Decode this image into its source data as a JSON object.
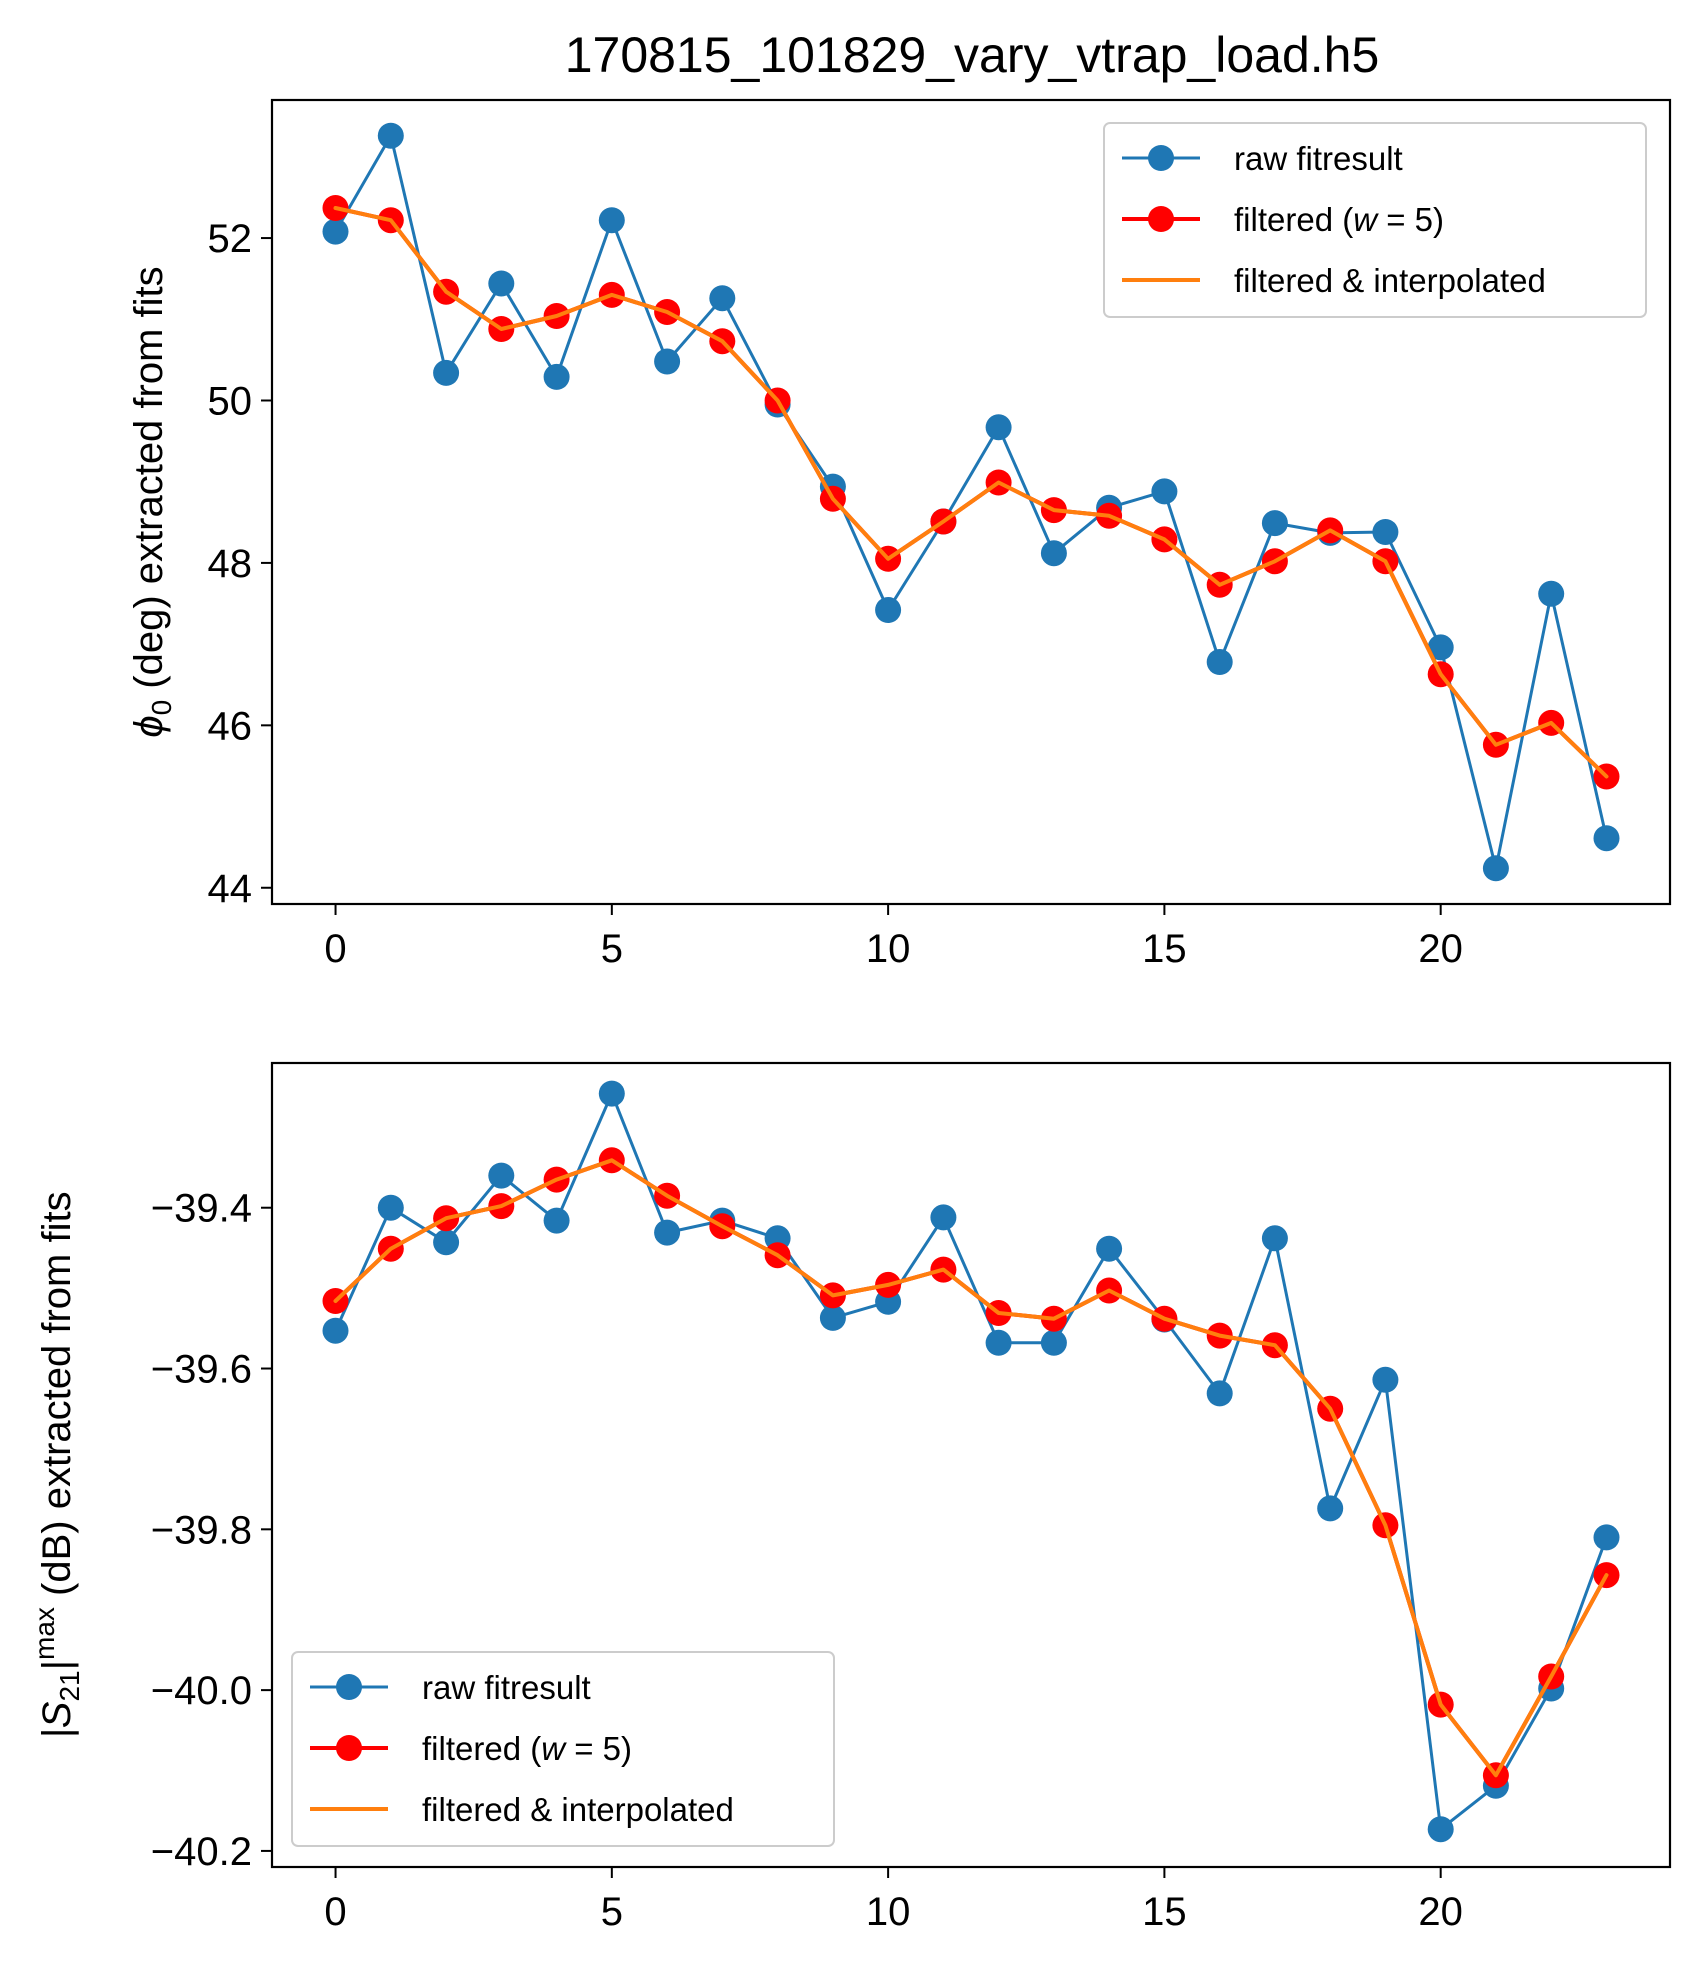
{
  "figure": {
    "title": "170815_101829_vary_vtrap_load.h5"
  },
  "colors": {
    "raw": "#1f77b4",
    "filtered": "#ff0000",
    "interpolated": "#ff7f0e"
  },
  "chart_data": [
    {
      "type": "line",
      "title": "170815_101829_vary_vtrap_load.h5",
      "xlabel": "",
      "ylabel": "ϕ0 (deg) extracted from fits",
      "ylabel_main": "ϕ",
      "ylabel_sub": "0",
      "ylabel_rest": " (deg) extracted from fits",
      "xlim": [
        -1.15,
        24.15
      ],
      "ylim": [
        43.8,
        53.7
      ],
      "xticks": [
        0,
        5,
        10,
        15,
        20
      ],
      "yticks": [
        44,
        46,
        48,
        50,
        52
      ],
      "grid": false,
      "legend_position": "top-right",
      "x": [
        0,
        1,
        2,
        3,
        4,
        5,
        6,
        7,
        8,
        9,
        10,
        11,
        12,
        13,
        14,
        15,
        16,
        17,
        18,
        19,
        20,
        21,
        22,
        23
      ],
      "series": [
        {
          "name": "raw fitresult",
          "style": "line-marker",
          "values": [
            52.08,
            53.26,
            50.34,
            51.44,
            50.29,
            52.22,
            50.48,
            51.26,
            49.95,
            48.94,
            47.42,
            48.51,
            49.67,
            48.12,
            48.68,
            48.88,
            46.78,
            48.49,
            48.37,
            48.38,
            46.96,
            44.24,
            47.62,
            44.61
          ]
        },
        {
          "name": "filtered (w = 5)",
          "style": "line-marker",
          "values": [
            52.37,
            52.22,
            51.34,
            50.88,
            51.04,
            51.3,
            51.09,
            50.73,
            50.0,
            48.79,
            48.05,
            48.51,
            48.99,
            48.65,
            48.58,
            48.29,
            47.73,
            48.02,
            48.4,
            48.02,
            46.63,
            45.76,
            46.03,
            45.37
          ]
        },
        {
          "name": "filtered & interpolated",
          "style": "line",
          "values": [
            52.37,
            52.22,
            51.34,
            50.88,
            51.04,
            51.3,
            51.09,
            50.73,
            50.0,
            48.79,
            48.05,
            48.51,
            48.99,
            48.65,
            48.58,
            48.29,
            47.73,
            48.02,
            48.4,
            48.02,
            46.63,
            45.76,
            46.03,
            45.37
          ]
        }
      ]
    },
    {
      "type": "line",
      "title": "",
      "xlabel": "",
      "ylabel": "|S21|max (dB) extracted from fits",
      "ylabel_main": "|S",
      "ylabel_sub": "21",
      "ylabel_mid": "|",
      "ylabel_sup": "max",
      "ylabel_rest": " (dB) extracted from fits",
      "xlim": [
        -1.15,
        24.15
      ],
      "ylim": [
        -40.22,
        -39.22
      ],
      "xticks": [
        0,
        5,
        10,
        15,
        20
      ],
      "yticks": [
        -40.2,
        -40.0,
        -39.8,
        -39.6,
        -39.4
      ],
      "ytick_labels": [
        "−40.2",
        "−40.0",
        "−39.8",
        "−39.6",
        "−39.4"
      ],
      "grid": false,
      "legend_position": "bottom-left",
      "x": [
        0,
        1,
        2,
        3,
        4,
        5,
        6,
        7,
        8,
        9,
        10,
        11,
        12,
        13,
        14,
        15,
        16,
        17,
        18,
        19,
        20,
        21,
        22,
        23
      ],
      "series": [
        {
          "name": "raw fitresult",
          "style": "line-marker",
          "values": [
            -39.553,
            -39.4,
            -39.443,
            -39.36,
            -39.416,
            -39.258,
            -39.431,
            -39.416,
            -39.438,
            -39.537,
            -39.517,
            -39.412,
            -39.568,
            -39.568,
            -39.451,
            -39.539,
            -39.631,
            -39.438,
            -39.774,
            -39.614,
            -40.173,
            -40.119,
            -39.998,
            -39.81
          ]
        },
        {
          "name": "filtered (w = 5)",
          "style": "line-marker",
          "values": [
            -39.516,
            -39.451,
            -39.413,
            -39.398,
            -39.365,
            -39.341,
            -39.385,
            -39.423,
            -39.459,
            -39.509,
            -39.496,
            -39.477,
            -39.531,
            -39.538,
            -39.503,
            -39.538,
            -39.559,
            -39.571,
            -39.65,
            -39.795,
            -40.018,
            -40.106,
            -39.983,
            -39.857
          ]
        },
        {
          "name": "filtered & interpolated",
          "style": "line",
          "values": [
            -39.516,
            -39.451,
            -39.413,
            -39.398,
            -39.365,
            -39.341,
            -39.385,
            -39.423,
            -39.459,
            -39.509,
            -39.496,
            -39.477,
            -39.531,
            -39.538,
            -39.503,
            -39.538,
            -39.559,
            -39.571,
            -39.65,
            -39.795,
            -40.018,
            -40.106,
            -39.983,
            -39.857
          ]
        }
      ]
    }
  ]
}
